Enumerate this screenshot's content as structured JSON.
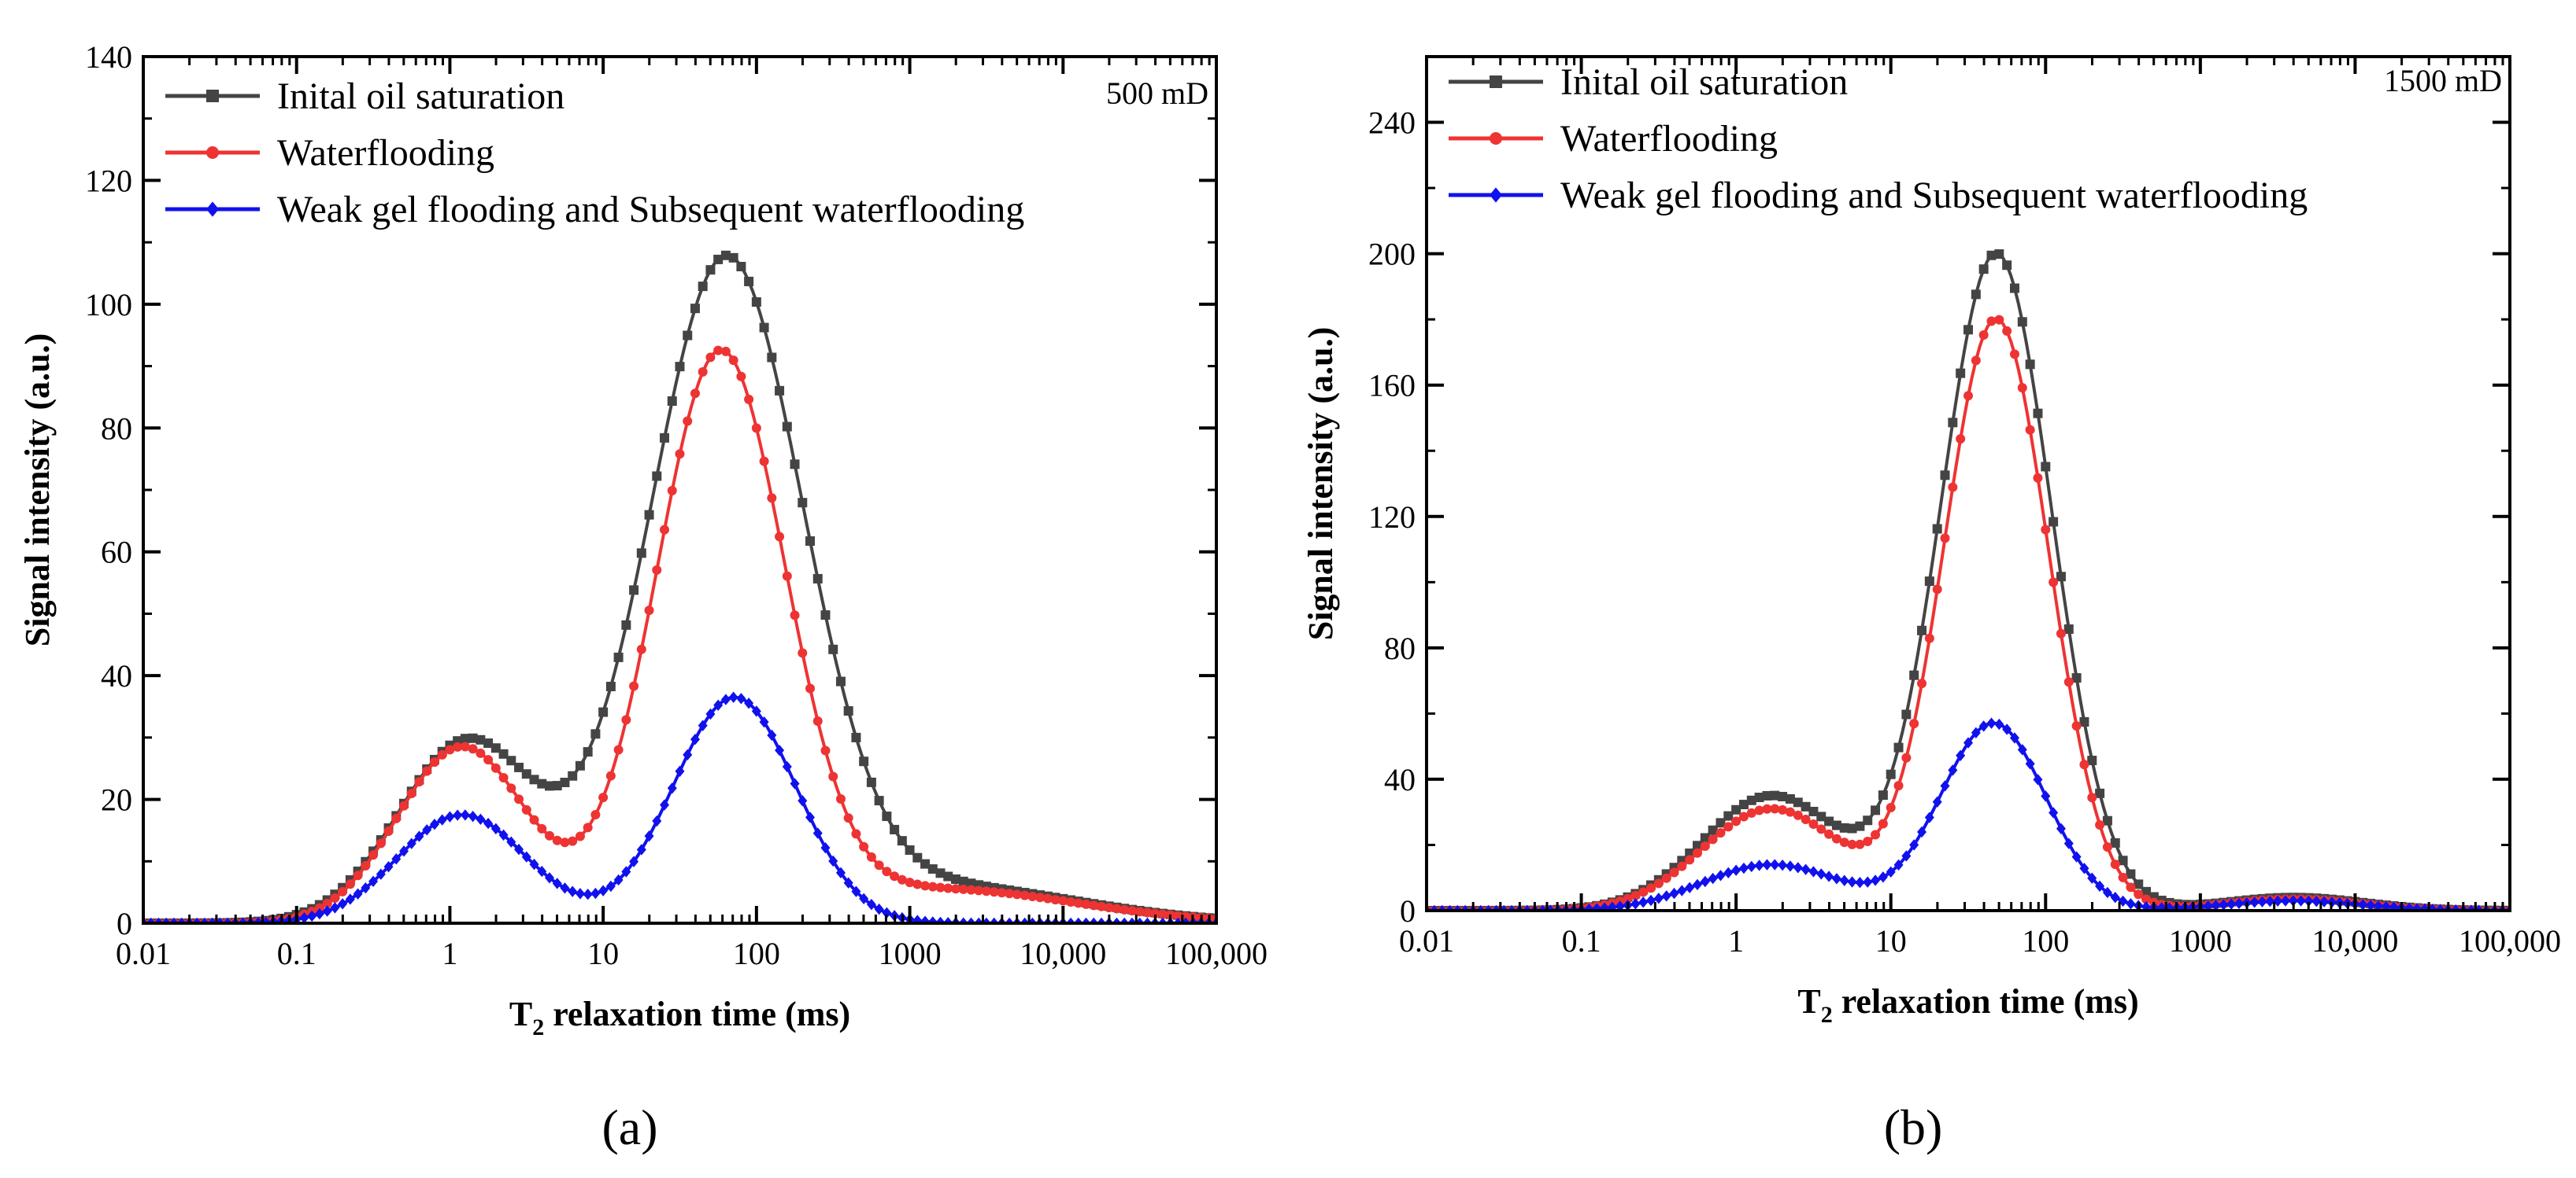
{
  "chart_data": [
    {
      "type": "line",
      "panel_label": "(a)",
      "annotation": "500 mD",
      "xlabel_main": "T",
      "xlabel_sub": "2",
      "xlabel_rest": " relaxation time (ms)",
      "ylabel": "Signal intensity (a.u.)",
      "x_scale": "log",
      "xlim": [
        0.01,
        100000
      ],
      "ylim": [
        0,
        140
      ],
      "x_ticks": [
        0.01,
        0.1,
        1,
        10,
        100,
        1000,
        10000,
        100000
      ],
      "x_tick_labels": [
        "0.01",
        "0.1",
        "1",
        "10",
        "100",
        "1000",
        "10,000",
        "100,000"
      ],
      "y_ticks": [
        0,
        20,
        40,
        60,
        80,
        100,
        120,
        140
      ],
      "y_tick_labels": [
        "0",
        "20",
        "40",
        "60",
        "80",
        "100",
        "120",
        "140"
      ],
      "legend_position": "top-left",
      "series": [
        {
          "name": "Inital oil saturation",
          "color": "#444444",
          "marker": "square",
          "peaks": [
            [
              0,
              0.08,
              0.16
            ],
            [
              29.5,
              1.3,
              0.45
            ],
            [
              106,
              63,
              0.5
            ]
          ],
          "tail": [
            6,
            1500,
            0.9
          ]
        },
        {
          "name": "Waterflooding",
          "color": "#ee3333",
          "marker": "circle",
          "peaks": [
            [
              0,
              0.08,
              0.16
            ],
            [
              28.5,
              1.2,
              0.42
            ],
            [
              91,
              58,
              0.42
            ]
          ],
          "tail": [
            5.5,
            1500,
            0.9
          ]
        },
        {
          "name": "Weak gel flooding and Subsequent waterflooding",
          "color": "#1111ee",
          "marker": "diamond",
          "peaks": [
            [
              0,
              0.08,
              0.16
            ],
            [
              17.5,
              1.2,
              0.42
            ],
            [
              36.5,
              72,
              0.4
            ]
          ],
          "tail": [
            0,
            1500,
            0.9
          ]
        }
      ]
    },
    {
      "type": "line",
      "panel_label": "(b)",
      "annotation": "1500 mD",
      "xlabel_main": "T",
      "xlabel_sub": "2",
      "xlabel_rest": " relaxation time (ms)",
      "ylabel": "Signal intensity (a.u.)",
      "x_scale": "log",
      "xlim": [
        0.01,
        100000
      ],
      "ylim": [
        0,
        260
      ],
      "x_ticks": [
        0.01,
        0.1,
        1,
        10,
        100,
        1000,
        10000,
        100000
      ],
      "x_tick_labels": [
        "0.01",
        "0.1",
        "1",
        "10",
        "100",
        "1000",
        "10,000",
        "100,000"
      ],
      "y_ticks": [
        0,
        40,
        80,
        120,
        160,
        200,
        240
      ],
      "y_tick_labels": [
        "0",
        "40",
        "80",
        "120",
        "160",
        "200",
        "240"
      ],
      "legend_position": "top-left",
      "series": [
        {
          "name": "Inital oil saturation",
          "color": "#444444",
          "marker": "square",
          "peaks": [
            [
              35,
              1.7,
              0.45
            ],
            [
              200,
              48,
              0.36
            ]
          ],
          "tail": [
            4,
            4000,
            0.45
          ]
        },
        {
          "name": "Waterflooding",
          "color": "#ee3333",
          "marker": "circle",
          "peaks": [
            [
              31,
              1.7,
              0.45
            ],
            [
              180,
              48,
              0.34
            ]
          ],
          "tail": [
            3.5,
            4000,
            0.45
          ]
        },
        {
          "name": "Weak gel flooding and Subsequent waterflooding",
          "color": "#1111ee",
          "marker": "diamond",
          "peaks": [
            [
              14,
              1.7,
              0.45
            ],
            [
              57,
              46,
              0.34
            ]
          ],
          "tail": [
            3,
            4000,
            0.45
          ]
        }
      ]
    }
  ]
}
